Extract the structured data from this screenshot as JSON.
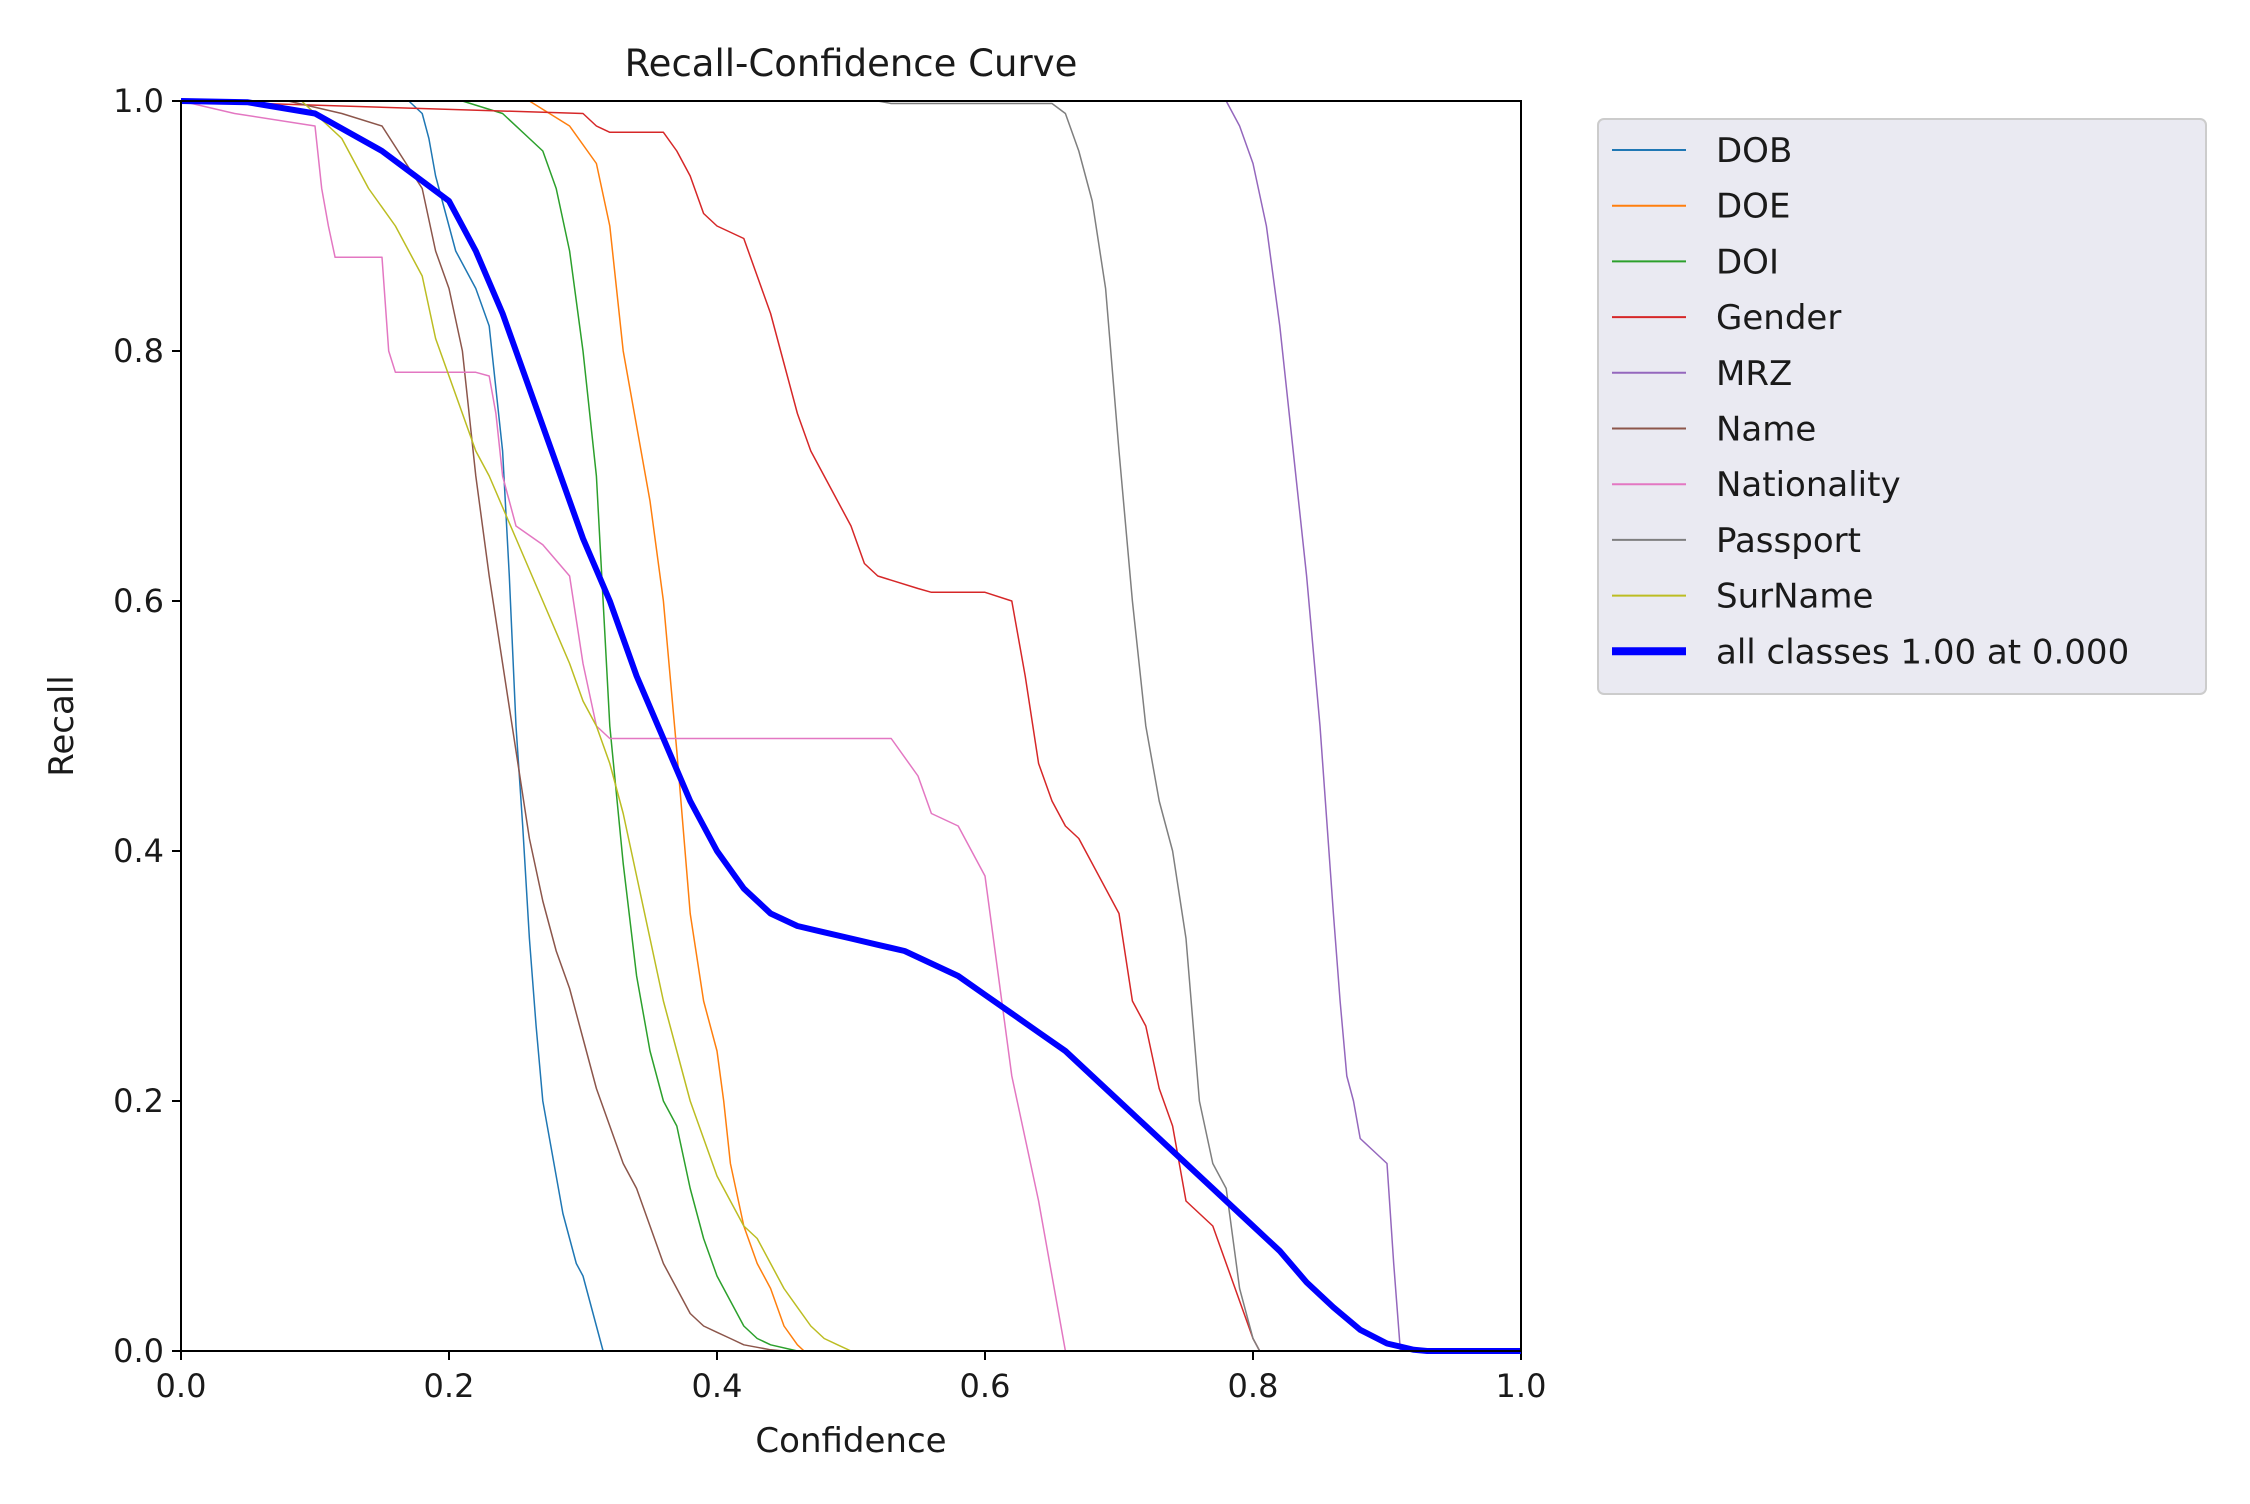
{
  "chart_data": {
    "type": "line",
    "title": "Recall-Confidence Curve",
    "xlabel": "Confidence",
    "ylabel": "Recall",
    "xlim": [
      0.0,
      1.0
    ],
    "ylim": [
      0.0,
      1.0
    ],
    "xticks": [
      "0.0",
      "0.2",
      "0.4",
      "0.6",
      "0.8",
      "1.0"
    ],
    "yticks": [
      "0.0",
      "0.2",
      "0.4",
      "0.6",
      "0.8",
      "1.0"
    ],
    "grid": false,
    "legend_position": "outside-right-top",
    "series": [
      {
        "name": "DOB",
        "color": "#1f77b4",
        "width": 1.5,
        "x": [
          0.0,
          0.17,
          0.18,
          0.185,
          0.19,
          0.2,
          0.205,
          0.21,
          0.22,
          0.23,
          0.24,
          0.245,
          0.25,
          0.255,
          0.26,
          0.265,
          0.27,
          0.275,
          0.28,
          0.285,
          0.29,
          0.295,
          0.3,
          0.305,
          0.31,
          0.315,
          1.0
        ],
        "y": [
          1.0,
          1.0,
          0.99,
          0.97,
          0.94,
          0.9,
          0.88,
          0.87,
          0.85,
          0.82,
          0.72,
          0.62,
          0.5,
          0.42,
          0.33,
          0.26,
          0.2,
          0.17,
          0.14,
          0.11,
          0.09,
          0.07,
          0.06,
          0.04,
          0.02,
          0.0,
          0.0
        ]
      },
      {
        "name": "DOE",
        "color": "#ff7f0e",
        "width": 1.5,
        "x": [
          0.0,
          0.26,
          0.29,
          0.31,
          0.32,
          0.325,
          0.33,
          0.34,
          0.35,
          0.36,
          0.37,
          0.38,
          0.39,
          0.4,
          0.405,
          0.41,
          0.42,
          0.43,
          0.44,
          0.45,
          0.46,
          0.465,
          1.0
        ],
        "y": [
          1.0,
          1.0,
          0.98,
          0.95,
          0.9,
          0.85,
          0.8,
          0.74,
          0.68,
          0.6,
          0.48,
          0.35,
          0.28,
          0.24,
          0.2,
          0.15,
          0.1,
          0.07,
          0.05,
          0.02,
          0.005,
          0.0,
          0.0
        ]
      },
      {
        "name": "DOI",
        "color": "#2ca02c",
        "width": 1.5,
        "x": [
          0.0,
          0.21,
          0.24,
          0.26,
          0.27,
          0.28,
          0.29,
          0.3,
          0.31,
          0.32,
          0.33,
          0.34,
          0.35,
          0.36,
          0.37,
          0.38,
          0.39,
          0.4,
          0.41,
          0.42,
          0.43,
          0.44,
          0.46,
          1.0
        ],
        "y": [
          1.0,
          1.0,
          0.99,
          0.97,
          0.96,
          0.93,
          0.88,
          0.8,
          0.7,
          0.5,
          0.39,
          0.3,
          0.24,
          0.2,
          0.18,
          0.13,
          0.09,
          0.06,
          0.04,
          0.02,
          0.01,
          0.005,
          0.0,
          0.0
        ]
      },
      {
        "name": "Gender",
        "color": "#d62728",
        "width": 1.5,
        "x": [
          0.0,
          0.3,
          0.31,
          0.32,
          0.36,
          0.37,
          0.38,
          0.39,
          0.4,
          0.42,
          0.43,
          0.44,
          0.45,
          0.46,
          0.47,
          0.48,
          0.5,
          0.51,
          0.52,
          0.55,
          0.56,
          0.58,
          0.6,
          0.62,
          0.63,
          0.64,
          0.65,
          0.66,
          0.67,
          0.7,
          0.71,
          0.72,
          0.73,
          0.74,
          0.75,
          0.76,
          0.77,
          0.78,
          0.79,
          0.8,
          0.805,
          1.0
        ],
        "y": [
          1.0,
          0.99,
          0.98,
          0.975,
          0.975,
          0.96,
          0.94,
          0.91,
          0.9,
          0.89,
          0.86,
          0.83,
          0.79,
          0.75,
          0.72,
          0.7,
          0.66,
          0.63,
          0.62,
          0.61,
          0.607,
          0.607,
          0.607,
          0.6,
          0.54,
          0.47,
          0.44,
          0.42,
          0.41,
          0.35,
          0.28,
          0.26,
          0.21,
          0.18,
          0.12,
          0.11,
          0.1,
          0.07,
          0.04,
          0.01,
          0.0,
          0.0
        ]
      },
      {
        "name": "MRZ",
        "color": "#9467bd",
        "width": 1.5,
        "x": [
          0.0,
          0.78,
          0.79,
          0.8,
          0.81,
          0.82,
          0.83,
          0.84,
          0.85,
          0.86,
          0.865,
          0.87,
          0.875,
          0.88,
          0.89,
          0.9,
          0.905,
          0.91,
          1.0
        ],
        "y": [
          1.0,
          1.0,
          0.98,
          0.95,
          0.9,
          0.82,
          0.72,
          0.62,
          0.5,
          0.35,
          0.28,
          0.22,
          0.2,
          0.17,
          0.16,
          0.15,
          0.07,
          0.0,
          0.0
        ]
      },
      {
        "name": "Name",
        "color": "#8c564b",
        "width": 1.5,
        "x": [
          0.0,
          0.08,
          0.12,
          0.15,
          0.18,
          0.19,
          0.2,
          0.21,
          0.22,
          0.23,
          0.24,
          0.25,
          0.26,
          0.27,
          0.28,
          0.29,
          0.3,
          0.31,
          0.32,
          0.33,
          0.34,
          0.35,
          0.36,
          0.37,
          0.38,
          0.39,
          0.4,
          0.41,
          0.42,
          0.43,
          0.44,
          0.45,
          1.0
        ],
        "y": [
          1.0,
          1.0,
          0.99,
          0.98,
          0.93,
          0.88,
          0.85,
          0.8,
          0.7,
          0.62,
          0.55,
          0.48,
          0.41,
          0.36,
          0.32,
          0.29,
          0.25,
          0.21,
          0.18,
          0.15,
          0.13,
          0.1,
          0.07,
          0.05,
          0.03,
          0.02,
          0.015,
          0.01,
          0.005,
          0.003,
          0.001,
          0.0,
          0.0
        ]
      },
      {
        "name": "Nationality",
        "color": "#e377c2",
        "width": 1.5,
        "x": [
          0.0,
          0.04,
          0.1,
          0.105,
          0.11,
          0.115,
          0.15,
          0.155,
          0.16,
          0.22,
          0.23,
          0.235,
          0.24,
          0.25,
          0.27,
          0.29,
          0.3,
          0.31,
          0.32,
          0.33,
          0.34,
          0.35,
          0.4,
          0.5,
          0.53,
          0.55,
          0.56,
          0.58,
          0.6,
          0.61,
          0.62,
          0.63,
          0.64,
          0.65,
          0.66,
          1.0
        ],
        "y": [
          1.0,
          0.99,
          0.98,
          0.93,
          0.9,
          0.875,
          0.875,
          0.8,
          0.783,
          0.783,
          0.78,
          0.75,
          0.7,
          0.66,
          0.645,
          0.62,
          0.55,
          0.5,
          0.49,
          0.49,
          0.49,
          0.49,
          0.49,
          0.49,
          0.49,
          0.46,
          0.43,
          0.42,
          0.38,
          0.3,
          0.22,
          0.17,
          0.12,
          0.06,
          0.0,
          0.0
        ]
      },
      {
        "name": "Passport",
        "color": "#7f7f7f",
        "width": 1.5,
        "x": [
          0.0,
          0.52,
          0.53,
          0.58,
          0.62,
          0.65,
          0.66,
          0.67,
          0.68,
          0.69,
          0.7,
          0.71,
          0.72,
          0.73,
          0.74,
          0.75,
          0.76,
          0.77,
          0.775,
          0.78,
          0.79,
          0.8,
          0.805,
          1.0
        ],
        "y": [
          1.0,
          1.0,
          0.998,
          0.998,
          0.998,
          0.998,
          0.99,
          0.96,
          0.92,
          0.85,
          0.72,
          0.6,
          0.5,
          0.44,
          0.4,
          0.33,
          0.2,
          0.15,
          0.14,
          0.13,
          0.05,
          0.01,
          0.0,
          0.0
        ]
      },
      {
        "name": "SurName",
        "color": "#bcbd22",
        "width": 1.5,
        "x": [
          0.0,
          0.09,
          0.12,
          0.14,
          0.16,
          0.18,
          0.19,
          0.2,
          0.21,
          0.22,
          0.23,
          0.25,
          0.27,
          0.29,
          0.3,
          0.31,
          0.32,
          0.33,
          0.34,
          0.35,
          0.36,
          0.37,
          0.38,
          0.39,
          0.4,
          0.41,
          0.42,
          0.43,
          0.44,
          0.45,
          0.46,
          0.47,
          0.48,
          0.49,
          0.5,
          1.0
        ],
        "y": [
          1.0,
          1.0,
          0.97,
          0.93,
          0.9,
          0.86,
          0.81,
          0.78,
          0.75,
          0.72,
          0.7,
          0.65,
          0.6,
          0.55,
          0.52,
          0.5,
          0.47,
          0.43,
          0.38,
          0.33,
          0.28,
          0.24,
          0.2,
          0.17,
          0.14,
          0.12,
          0.1,
          0.09,
          0.07,
          0.05,
          0.035,
          0.02,
          0.01,
          0.005,
          0.0,
          0.0
        ]
      },
      {
        "name": "all classes 1.00 at 0.000",
        "color": "#0000ff",
        "width": 6,
        "x": [
          0.0,
          0.05,
          0.1,
          0.15,
          0.2,
          0.22,
          0.24,
          0.26,
          0.28,
          0.3,
          0.32,
          0.34,
          0.36,
          0.38,
          0.4,
          0.42,
          0.44,
          0.46,
          0.48,
          0.5,
          0.52,
          0.54,
          0.56,
          0.58,
          0.6,
          0.62,
          0.64,
          0.66,
          0.68,
          0.7,
          0.72,
          0.74,
          0.76,
          0.78,
          0.8,
          0.82,
          0.84,
          0.86,
          0.88,
          0.9,
          0.92,
          0.93,
          0.95,
          1.0
        ],
        "y": [
          1.0,
          0.999,
          0.99,
          0.96,
          0.92,
          0.88,
          0.83,
          0.77,
          0.71,
          0.65,
          0.6,
          0.54,
          0.49,
          0.44,
          0.4,
          0.37,
          0.35,
          0.34,
          0.335,
          0.33,
          0.325,
          0.32,
          0.31,
          0.3,
          0.285,
          0.27,
          0.255,
          0.24,
          0.22,
          0.2,
          0.18,
          0.16,
          0.14,
          0.12,
          0.1,
          0.08,
          0.055,
          0.035,
          0.017,
          0.006,
          0.001,
          0.0,
          0.0,
          0.0
        ]
      }
    ]
  }
}
